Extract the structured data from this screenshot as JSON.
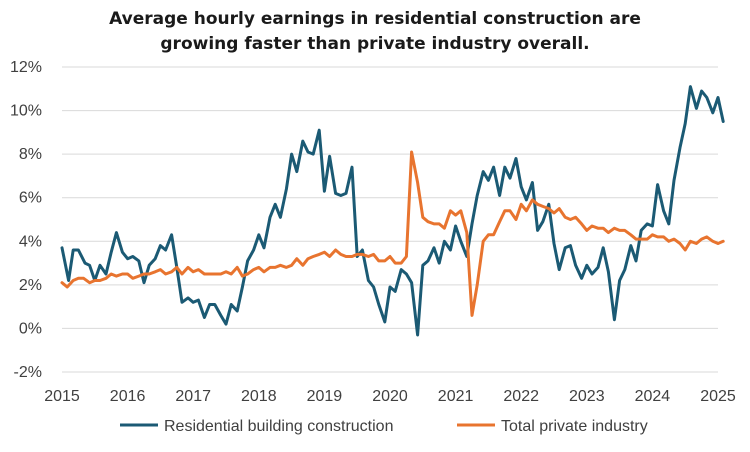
{
  "chart_data": {
    "type": "line",
    "title_lines": [
      "Average hourly earnings in residential construction are",
      "growing faster than private industry overall."
    ],
    "xlabel": "",
    "ylabel": "",
    "xlim": [
      2015.0,
      2025.0
    ],
    "ylim": [
      -2,
      12
    ],
    "x_ticks": [
      2015,
      2016,
      2017,
      2018,
      2019,
      2020,
      2021,
      2022,
      2023,
      2024,
      2025
    ],
    "x_tick_labels": [
      "2015",
      "2016",
      "2017",
      "2018",
      "2019",
      "2020",
      "2021",
      "2022",
      "2023",
      "2024",
      "2025"
    ],
    "y_ticks": [
      -2,
      0,
      2,
      4,
      6,
      8,
      10,
      12
    ],
    "y_tick_labels": [
      "-2%",
      "0%",
      "2%",
      "4%",
      "6%",
      "8%",
      "10%",
      "12%"
    ],
    "grid": "horizontal",
    "legend_position": "bottom",
    "series": [
      {
        "name": "Residential building construction",
        "color": "#1b5a74",
        "points": [
          [
            2015.0,
            3.7
          ],
          [
            2015.1,
            2.2
          ],
          [
            2015.17,
            3.6
          ],
          [
            2015.25,
            3.6
          ],
          [
            2015.35,
            3.0
          ],
          [
            2015.42,
            2.9
          ],
          [
            2015.5,
            2.2
          ],
          [
            2015.58,
            2.9
          ],
          [
            2015.67,
            2.5
          ],
          [
            2015.75,
            3.5
          ],
          [
            2015.83,
            4.4
          ],
          [
            2015.92,
            3.5
          ],
          [
            2016.0,
            3.2
          ],
          [
            2016.08,
            3.3
          ],
          [
            2016.17,
            3.1
          ],
          [
            2016.25,
            2.1
          ],
          [
            2016.33,
            2.9
          ],
          [
            2016.42,
            3.2
          ],
          [
            2016.5,
            3.8
          ],
          [
            2016.58,
            3.6
          ],
          [
            2016.67,
            4.3
          ],
          [
            2016.75,
            2.8
          ],
          [
            2016.83,
            1.2
          ],
          [
            2016.92,
            1.4
          ],
          [
            2017.0,
            1.2
          ],
          [
            2017.08,
            1.3
          ],
          [
            2017.17,
            0.5
          ],
          [
            2017.25,
            1.1
          ],
          [
            2017.33,
            1.1
          ],
          [
            2017.42,
            0.6
          ],
          [
            2017.5,
            0.2
          ],
          [
            2017.58,
            1.1
          ],
          [
            2017.67,
            0.8
          ],
          [
            2017.75,
            1.9
          ],
          [
            2017.83,
            3.1
          ],
          [
            2017.92,
            3.6
          ],
          [
            2018.0,
            4.3
          ],
          [
            2018.08,
            3.7
          ],
          [
            2018.17,
            5.1
          ],
          [
            2018.25,
            5.7
          ],
          [
            2018.33,
            5.1
          ],
          [
            2018.42,
            6.4
          ],
          [
            2018.5,
            8.0
          ],
          [
            2018.58,
            7.2
          ],
          [
            2018.67,
            8.6
          ],
          [
            2018.75,
            8.1
          ],
          [
            2018.83,
            8.0
          ],
          [
            2018.92,
            9.1
          ],
          [
            2019.0,
            6.3
          ],
          [
            2019.08,
            7.9
          ],
          [
            2019.17,
            6.2
          ],
          [
            2019.25,
            6.1
          ],
          [
            2019.33,
            6.2
          ],
          [
            2019.42,
            7.4
          ],
          [
            2019.5,
            3.3
          ],
          [
            2019.58,
            3.6
          ],
          [
            2019.67,
            2.2
          ],
          [
            2019.75,
            1.9
          ],
          [
            2019.83,
            1.1
          ],
          [
            2019.92,
            0.3
          ],
          [
            2020.0,
            1.9
          ],
          [
            2020.08,
            1.7
          ],
          [
            2020.17,
            2.7
          ],
          [
            2020.25,
            2.5
          ],
          [
            2020.33,
            2.1
          ],
          [
            2020.42,
            -0.3
          ],
          [
            2020.5,
            2.9
          ],
          [
            2020.58,
            3.1
          ],
          [
            2020.67,
            3.7
          ],
          [
            2020.75,
            3.0
          ],
          [
            2020.83,
            4.0
          ],
          [
            2020.92,
            3.6
          ],
          [
            2021.0,
            4.7
          ],
          [
            2021.08,
            4.0
          ],
          [
            2021.17,
            3.3
          ],
          [
            2021.25,
            4.8
          ],
          [
            2021.33,
            6.1
          ],
          [
            2021.42,
            7.2
          ],
          [
            2021.5,
            6.8
          ],
          [
            2021.58,
            7.4
          ],
          [
            2021.67,
            6.1
          ],
          [
            2021.75,
            7.4
          ],
          [
            2021.83,
            6.9
          ],
          [
            2021.92,
            7.8
          ],
          [
            2022.0,
            6.5
          ],
          [
            2022.08,
            5.9
          ],
          [
            2022.17,
            6.7
          ],
          [
            2022.25,
            4.5
          ],
          [
            2022.33,
            4.9
          ],
          [
            2022.42,
            5.7
          ],
          [
            2022.5,
            3.9
          ],
          [
            2022.58,
            2.7
          ],
          [
            2022.67,
            3.7
          ],
          [
            2022.75,
            3.8
          ],
          [
            2022.83,
            2.9
          ],
          [
            2022.92,
            2.3
          ],
          [
            2023.0,
            2.9
          ],
          [
            2023.08,
            2.5
          ],
          [
            2023.17,
            2.8
          ],
          [
            2023.25,
            3.7
          ],
          [
            2023.33,
            2.6
          ],
          [
            2023.42,
            0.4
          ],
          [
            2023.5,
            2.2
          ],
          [
            2023.58,
            2.7
          ],
          [
            2023.67,
            3.8
          ],
          [
            2023.75,
            3.1
          ],
          [
            2023.83,
            4.5
          ],
          [
            2023.92,
            4.8
          ],
          [
            2024.0,
            4.7
          ],
          [
            2024.08,
            6.6
          ],
          [
            2024.17,
            5.4
          ],
          [
            2024.25,
            4.8
          ],
          [
            2024.33,
            6.8
          ],
          [
            2024.42,
            8.3
          ],
          [
            2024.5,
            9.4
          ],
          [
            2024.58,
            11.1
          ],
          [
            2024.67,
            10.1
          ],
          [
            2024.75,
            10.9
          ],
          [
            2024.83,
            10.6
          ],
          [
            2024.92,
            9.9
          ],
          [
            2025.0,
            10.6
          ],
          [
            2025.08,
            9.5
          ]
        ]
      },
      {
        "name": "Total private industry",
        "color": "#e8742f",
        "points": [
          [
            2015.0,
            2.1
          ],
          [
            2015.08,
            1.9
          ],
          [
            2015.17,
            2.2
          ],
          [
            2015.25,
            2.3
          ],
          [
            2015.33,
            2.3
          ],
          [
            2015.42,
            2.1
          ],
          [
            2015.5,
            2.2
          ],
          [
            2015.58,
            2.2
          ],
          [
            2015.67,
            2.3
          ],
          [
            2015.75,
            2.5
          ],
          [
            2015.83,
            2.4
          ],
          [
            2015.92,
            2.5
          ],
          [
            2016.0,
            2.5
          ],
          [
            2016.08,
            2.3
          ],
          [
            2016.17,
            2.4
          ],
          [
            2016.25,
            2.5
          ],
          [
            2016.33,
            2.5
          ],
          [
            2016.42,
            2.6
          ],
          [
            2016.5,
            2.7
          ],
          [
            2016.58,
            2.5
          ],
          [
            2016.67,
            2.6
          ],
          [
            2016.75,
            2.8
          ],
          [
            2016.83,
            2.5
          ],
          [
            2016.92,
            2.8
          ],
          [
            2017.0,
            2.6
          ],
          [
            2017.08,
            2.7
          ],
          [
            2017.17,
            2.5
          ],
          [
            2017.25,
            2.5
          ],
          [
            2017.33,
            2.5
          ],
          [
            2017.42,
            2.5
          ],
          [
            2017.5,
            2.6
          ],
          [
            2017.58,
            2.5
          ],
          [
            2017.67,
            2.8
          ],
          [
            2017.75,
            2.4
          ],
          [
            2017.83,
            2.5
          ],
          [
            2017.92,
            2.7
          ],
          [
            2018.0,
            2.8
          ],
          [
            2018.08,
            2.6
          ],
          [
            2018.17,
            2.8
          ],
          [
            2018.25,
            2.8
          ],
          [
            2018.33,
            2.9
          ],
          [
            2018.42,
            2.8
          ],
          [
            2018.5,
            2.9
          ],
          [
            2018.58,
            3.2
          ],
          [
            2018.67,
            2.9
          ],
          [
            2018.75,
            3.2
          ],
          [
            2018.83,
            3.3
          ],
          [
            2018.92,
            3.4
          ],
          [
            2019.0,
            3.5
          ],
          [
            2019.08,
            3.3
          ],
          [
            2019.17,
            3.6
          ],
          [
            2019.25,
            3.4
          ],
          [
            2019.33,
            3.3
          ],
          [
            2019.42,
            3.3
          ],
          [
            2019.5,
            3.4
          ],
          [
            2019.58,
            3.4
          ],
          [
            2019.67,
            3.3
          ],
          [
            2019.75,
            3.4
          ],
          [
            2019.83,
            3.1
          ],
          [
            2019.92,
            3.1
          ],
          [
            2020.0,
            3.3
          ],
          [
            2020.08,
            3.0
          ],
          [
            2020.17,
            3.0
          ],
          [
            2020.25,
            3.3
          ],
          [
            2020.33,
            8.1
          ],
          [
            2020.42,
            6.7
          ],
          [
            2020.5,
            5.1
          ],
          [
            2020.58,
            4.9
          ],
          [
            2020.67,
            4.8
          ],
          [
            2020.75,
            4.8
          ],
          [
            2020.83,
            4.6
          ],
          [
            2020.92,
            5.4
          ],
          [
            2021.0,
            5.2
          ],
          [
            2021.08,
            5.4
          ],
          [
            2021.17,
            4.4
          ],
          [
            2021.25,
            0.6
          ],
          [
            2021.33,
            2.0
          ],
          [
            2021.42,
            4.0
          ],
          [
            2021.5,
            4.3
          ],
          [
            2021.58,
            4.3
          ],
          [
            2021.67,
            4.9
          ],
          [
            2021.75,
            5.4
          ],
          [
            2021.83,
            5.4
          ],
          [
            2021.92,
            5.0
          ],
          [
            2022.0,
            5.7
          ],
          [
            2022.08,
            5.4
          ],
          [
            2022.17,
            5.9
          ],
          [
            2022.25,
            5.7
          ],
          [
            2022.33,
            5.6
          ],
          [
            2022.42,
            5.5
          ],
          [
            2022.5,
            5.3
          ],
          [
            2022.58,
            5.5
          ],
          [
            2022.67,
            5.1
          ],
          [
            2022.75,
            5.0
          ],
          [
            2022.83,
            5.1
          ],
          [
            2022.92,
            4.8
          ],
          [
            2023.0,
            4.5
          ],
          [
            2023.08,
            4.7
          ],
          [
            2023.17,
            4.6
          ],
          [
            2023.25,
            4.6
          ],
          [
            2023.33,
            4.4
          ],
          [
            2023.42,
            4.6
          ],
          [
            2023.5,
            4.5
          ],
          [
            2023.58,
            4.5
          ],
          [
            2023.67,
            4.3
          ],
          [
            2023.75,
            4.1
          ],
          [
            2023.83,
            4.1
          ],
          [
            2023.92,
            4.1
          ],
          [
            2024.0,
            4.3
          ],
          [
            2024.08,
            4.2
          ],
          [
            2024.17,
            4.2
          ],
          [
            2024.25,
            4.0
          ],
          [
            2024.33,
            4.1
          ],
          [
            2024.42,
            3.9
          ],
          [
            2024.5,
            3.6
          ],
          [
            2024.58,
            4.0
          ],
          [
            2024.67,
            3.9
          ],
          [
            2024.75,
            4.1
          ],
          [
            2024.83,
            4.2
          ],
          [
            2024.92,
            4.0
          ],
          [
            2025.0,
            3.9
          ],
          [
            2025.08,
            4.0
          ]
        ]
      }
    ]
  }
}
